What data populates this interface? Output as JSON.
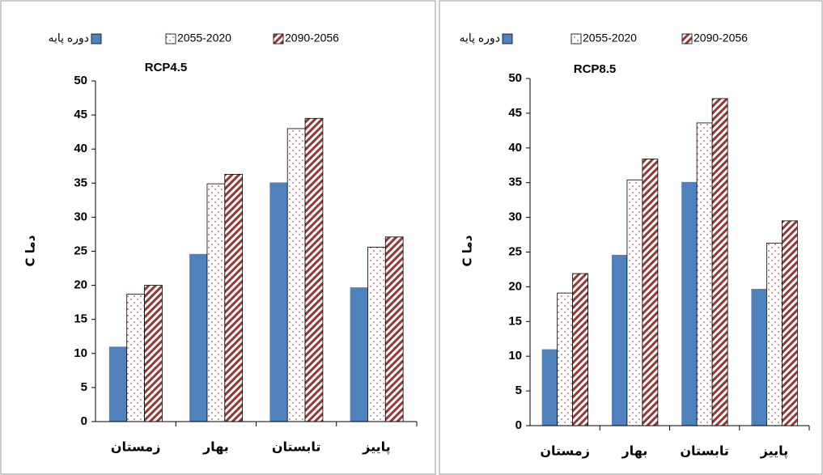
{
  "chart_data": [
    {
      "type": "bar",
      "title": "RCP4.5",
      "y_label": "C دما",
      "categories": [
        "زمستان",
        "بهار",
        "تابستان",
        "پاییز"
      ],
      "series": [
        {
          "name": "دوره پایه",
          "color": "#4f81bd",
          "pattern": "solid",
          "values": [
            11,
            24.6,
            35.1,
            19.7
          ]
        },
        {
          "name": "2055-2020",
          "color": "#c0504d",
          "pattern": "dots",
          "values": [
            18.7,
            34.9,
            43,
            25.6
          ]
        },
        {
          "name": "2090-2056",
          "color": "#953735",
          "pattern": "stripes",
          "values": [
            20,
            36.3,
            44.5,
            27.1
          ]
        }
      ],
      "ylim": [
        0,
        50
      ],
      "yticks": [
        0,
        5,
        10,
        15,
        20,
        25,
        30,
        35,
        40,
        45,
        50
      ],
      "grid": false
    },
    {
      "type": "bar",
      "title": "RCP8.5",
      "y_label": "C دما",
      "categories": [
        "زمستان",
        "بهار",
        "تابستان",
        "پاییز"
      ],
      "series": [
        {
          "name": "دوره پایه",
          "color": "#4f81bd",
          "pattern": "solid",
          "values": [
            11,
            24.6,
            35.1,
            19.7
          ]
        },
        {
          "name": "2055-2020",
          "color": "#c0504d",
          "pattern": "dots",
          "values": [
            19.1,
            35.4,
            43.6,
            26.3
          ]
        },
        {
          "name": "2090-2056",
          "color": "#953735",
          "pattern": "stripes",
          "values": [
            21.9,
            38.4,
            47.1,
            29.5
          ]
        }
      ],
      "ylim": [
        0,
        50
      ],
      "yticks": [
        0,
        5,
        10,
        15,
        20,
        25,
        30,
        35,
        40,
        45,
        50
      ],
      "grid": false
    }
  ]
}
